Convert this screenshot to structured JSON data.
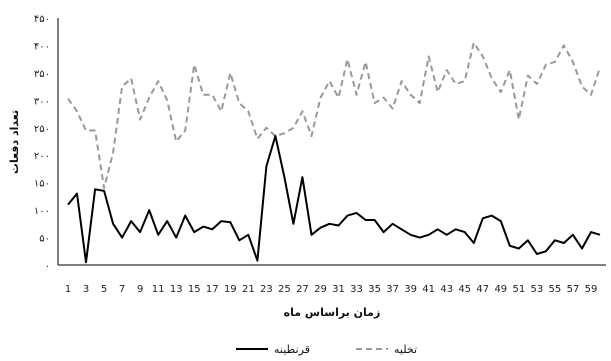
{
  "chart_data": {
    "type": "line",
    "xlabel": "زمان براساس ماه",
    "ylabel": "تعداد دفعات",
    "ylim": [
      0,
      450
    ],
    "y_ticks": [
      "۰",
      "۵۰",
      "۱۰۰",
      "۱۵۰",
      "۲۰۰",
      "۲۵۰",
      "۳۰۰",
      "۳۵۰",
      "۴۰۰",
      "۴۵۰"
    ],
    "x_tick_labels": [
      "1",
      "3",
      "5",
      "7",
      "9",
      "11",
      "13",
      "15",
      "17",
      "19",
      "21",
      "23",
      "25",
      "27",
      "29",
      "31",
      "33",
      "35",
      "37",
      "39",
      "41",
      "43",
      "45",
      "47",
      "49",
      "51",
      "53",
      "55",
      "57",
      "59"
    ],
    "x": [
      1,
      2,
      3,
      4,
      5,
      6,
      7,
      8,
      9,
      10,
      11,
      12,
      13,
      14,
      15,
      16,
      17,
      18,
      19,
      20,
      21,
      22,
      23,
      24,
      25,
      26,
      27,
      28,
      29,
      30,
      31,
      32,
      33,
      34,
      35,
      36,
      37,
      38,
      39,
      40,
      41,
      42,
      43,
      45,
      44,
      46,
      47,
      48,
      49,
      50,
      51,
      52,
      53,
      54,
      55,
      56,
      57,
      58,
      59,
      60
    ],
    "grid": false,
    "legend_position": "bottom",
    "series": [
      {
        "name": "تخلیه",
        "style": "dashed",
        "color": "#999999",
        "values": [
          303,
          280,
          245,
          245,
          140,
          205,
          325,
          340,
          265,
          305,
          335,
          300,
          225,
          245,
          365,
          310,
          310,
          280,
          350,
          295,
          280,
          230,
          250,
          235,
          240,
          250,
          280,
          235,
          305,
          335,
          305,
          375,
          310,
          370,
          295,
          305,
          285,
          335,
          310,
          295,
          380,
          315,
          355,
          330,
          335,
          405,
          380,
          340,
          315,
          355,
          265,
          345,
          330,
          365,
          370,
          400,
          370,
          325,
          310,
          360
        ]
      },
      {
        "name": "قرنطینه",
        "style": "solid",
        "color": "#000000",
        "values": [
          110,
          130,
          5,
          138,
          135,
          75,
          50,
          80,
          60,
          100,
          55,
          80,
          50,
          90,
          60,
          70,
          65,
          80,
          78,
          45,
          55,
          8,
          180,
          235,
          160,
          75,
          160,
          55,
          68,
          75,
          72,
          90,
          95,
          82,
          82,
          60,
          75,
          65,
          55,
          50,
          55,
          65,
          55,
          65,
          60,
          40,
          85,
          90,
          80,
          35,
          30,
          45,
          20,
          25,
          45,
          40,
          55,
          30,
          60,
          55
        ]
      }
    ]
  }
}
